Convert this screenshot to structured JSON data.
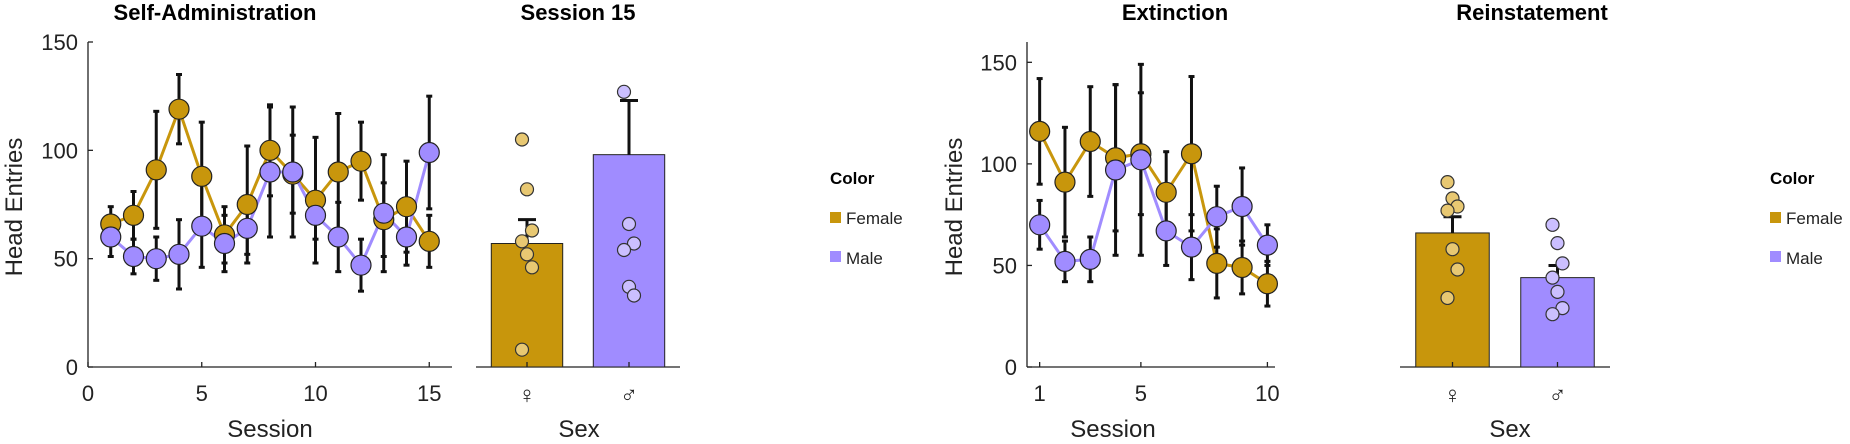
{
  "colors": {
    "female": "#c8960c",
    "male": "#a08cff",
    "female_dot": "#e8c872",
    "male_dot": "#cbbfff"
  },
  "chart_data": [
    {
      "type": "line",
      "title": "Self-Administration",
      "xlabel": "Session",
      "ylabel": "Head Entries",
      "xlim": [
        0,
        16
      ],
      "ylim": [
        0,
        150
      ],
      "xticks": [
        0,
        5,
        10,
        15
      ],
      "yticks": [
        0,
        50,
        100,
        150
      ],
      "x": [
        1,
        2,
        3,
        4,
        5,
        6,
        7,
        8,
        9,
        10,
        11,
        12,
        13,
        14,
        15
      ],
      "series": [
        {
          "name": "Female",
          "values": [
            66,
            70,
            91,
            119,
            88,
            61,
            75,
            100,
            89,
            77,
            90,
            95,
            68,
            74,
            58
          ],
          "err": [
            8,
            11,
            27,
            16,
            25,
            13,
            27,
            21,
            18,
            29,
            27,
            18,
            17,
            21,
            12
          ]
        },
        {
          "name": "Male",
          "values": [
            60,
            51,
            50,
            52,
            65,
            57,
            64,
            90,
            90,
            70,
            60,
            47,
            71,
            60,
            99
          ],
          "err": [
            9,
            8,
            10,
            16,
            19,
            13,
            12,
            30,
            30,
            11,
            16,
            12,
            27,
            13,
            26
          ]
        }
      ]
    },
    {
      "type": "bar",
      "title": "Session 15",
      "xlabel": "Sex",
      "ylim": [
        0,
        150
      ],
      "categories": [
        "♀",
        "♂"
      ],
      "values": [
        57,
        98
      ],
      "err": [
        11,
        25
      ],
      "points": [
        [
          105,
          82,
          63,
          58,
          52,
          46,
          8
        ],
        [
          127,
          66,
          57,
          54,
          37,
          33
        ]
      ]
    },
    {
      "type": "line",
      "title": "Extinction",
      "xlabel": "Session",
      "ylabel": "Head Entries",
      "xlim": [
        0.5,
        10.3
      ],
      "ylim": [
        0,
        160
      ],
      "xticks": [
        1,
        5,
        10
      ],
      "yticks": [
        0,
        50,
        100,
        150
      ],
      "x": [
        1,
        2,
        3,
        4,
        5,
        6,
        7,
        8,
        9,
        10
      ],
      "series": [
        {
          "name": "Female",
          "values": [
            116,
            91,
            111,
            103,
            105,
            86,
            105,
            51,
            49,
            41
          ],
          "err": [
            26,
            27,
            27,
            36,
            30,
            20,
            38,
            17,
            13,
            11
          ]
        },
        {
          "name": "Male",
          "values": [
            70,
            52,
            53,
            97,
            102,
            67,
            59,
            74,
            79,
            60
          ],
          "err": [
            12,
            10,
            11,
            42,
            47,
            17,
            16,
            15,
            19,
            10
          ]
        }
      ]
    },
    {
      "type": "bar",
      "title": "Reinstatement",
      "xlabel": "Sex",
      "ylim": [
        0,
        160
      ],
      "categories": [
        "♀",
        "♂"
      ],
      "values": [
        66,
        44
      ],
      "err": [
        8,
        6
      ],
      "points": [
        [
          91,
          83,
          79,
          77,
          58,
          48,
          34
        ],
        [
          70,
          61,
          51,
          44,
          37,
          29,
          26
        ]
      ]
    }
  ],
  "legends": [
    {
      "title": "Color",
      "items": [
        "Female",
        "Male"
      ]
    },
    {
      "title": "Color",
      "items": [
        "Female",
        "Male"
      ]
    }
  ]
}
